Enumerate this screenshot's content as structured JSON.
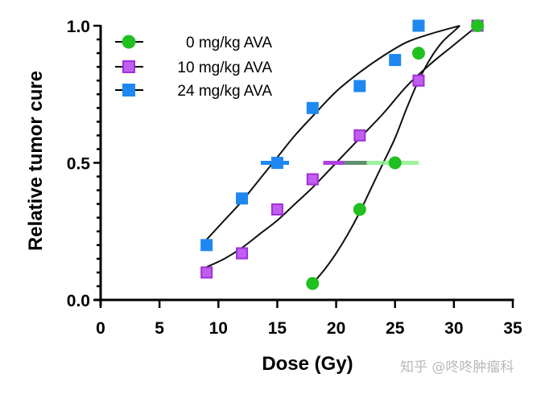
{
  "chart_data": {
    "type": "scatter",
    "title": "",
    "xlabel": "Dose (Gy)",
    "ylabel": "Relative tumor cure",
    "xlim": [
      0,
      35
    ],
    "ylim": [
      0,
      1.0
    ],
    "x_ticks": [
      "0",
      "5",
      "10",
      "15",
      "20",
      "25",
      "30",
      "35"
    ],
    "y_ticks": [
      "0.0",
      "0.5",
      "1.0"
    ],
    "grid": false,
    "legend_position": "top-left",
    "series": [
      {
        "name": "0 mg/kg AVA",
        "color": "#1fc01f",
        "marker": "circle",
        "points": [
          {
            "x": 18,
            "y": 0.06
          },
          {
            "x": 22,
            "y": 0.33
          },
          {
            "x": 25,
            "y": 0.5
          },
          {
            "x": 27,
            "y": 0.9
          },
          {
            "x": 32,
            "y": 1.0
          }
        ],
        "fit": [
          [
            18,
            0.06
          ],
          [
            19,
            0.11
          ],
          [
            20,
            0.17
          ],
          [
            21,
            0.24
          ],
          [
            22,
            0.32
          ],
          [
            23,
            0.41
          ],
          [
            24,
            0.5
          ],
          [
            25,
            0.59
          ],
          [
            26,
            0.7
          ],
          [
            27,
            0.8
          ],
          [
            28,
            0.88
          ],
          [
            29,
            0.94
          ],
          [
            30,
            0.98
          ],
          [
            30.5,
            1.0
          ]
        ],
        "ed50_error": {
          "y": 0.5,
          "x_low": 20.7,
          "x_high": 27.0,
          "color": "#8ef08e"
        }
      },
      {
        "name": "10 mg/kg AVA",
        "color": "#b03ee0",
        "marker": "square-outlined",
        "points": [
          {
            "x": 9,
            "y": 0.1
          },
          {
            "x": 12,
            "y": 0.17
          },
          {
            "x": 15,
            "y": 0.33
          },
          {
            "x": 18,
            "y": 0.44
          },
          {
            "x": 22,
            "y": 0.6
          },
          {
            "x": 27,
            "y": 0.8
          },
          {
            "x": 32,
            "y": 1.0
          }
        ],
        "fit": [
          [
            9,
            0.12
          ],
          [
            10.5,
            0.15
          ],
          [
            12,
            0.19
          ],
          [
            13.5,
            0.24
          ],
          [
            15,
            0.29
          ],
          [
            16.5,
            0.35
          ],
          [
            18,
            0.41
          ],
          [
            20,
            0.5
          ],
          [
            22,
            0.59
          ],
          [
            24,
            0.68
          ],
          [
            26,
            0.78
          ],
          [
            28,
            0.86
          ],
          [
            30,
            0.93
          ],
          [
            32,
            1.0
          ]
        ],
        "ed50_error": {
          "y": 0.5,
          "x_low": 18.9,
          "x_high": 22.6,
          "color": "#b03ee0"
        }
      },
      {
        "name": "24 mg/kg AVA",
        "color": "#1e88f0",
        "marker": "square",
        "points": [
          {
            "x": 9,
            "y": 0.2
          },
          {
            "x": 12,
            "y": 0.37
          },
          {
            "x": 15,
            "y": 0.5
          },
          {
            "x": 18,
            "y": 0.7
          },
          {
            "x": 22,
            "y": 0.78
          },
          {
            "x": 25,
            "y": 0.875
          },
          {
            "x": 27,
            "y": 1.0
          }
        ],
        "fit": [
          [
            9,
            0.22
          ],
          [
            10.5,
            0.29
          ],
          [
            12,
            0.36
          ],
          [
            13.5,
            0.44
          ],
          [
            15,
            0.52
          ],
          [
            16.5,
            0.6
          ],
          [
            18,
            0.67
          ],
          [
            20,
            0.76
          ],
          [
            22,
            0.83
          ],
          [
            24,
            0.89
          ],
          [
            26,
            0.94
          ],
          [
            28,
            0.97
          ],
          [
            30.5,
            1.0
          ]
        ],
        "ed50_error": {
          "y": 0.5,
          "x_low": 13.6,
          "x_high": 16.0,
          "color": "#1e88f0"
        }
      }
    ]
  },
  "watermark": "知乎 @咚咚肿瘤科"
}
